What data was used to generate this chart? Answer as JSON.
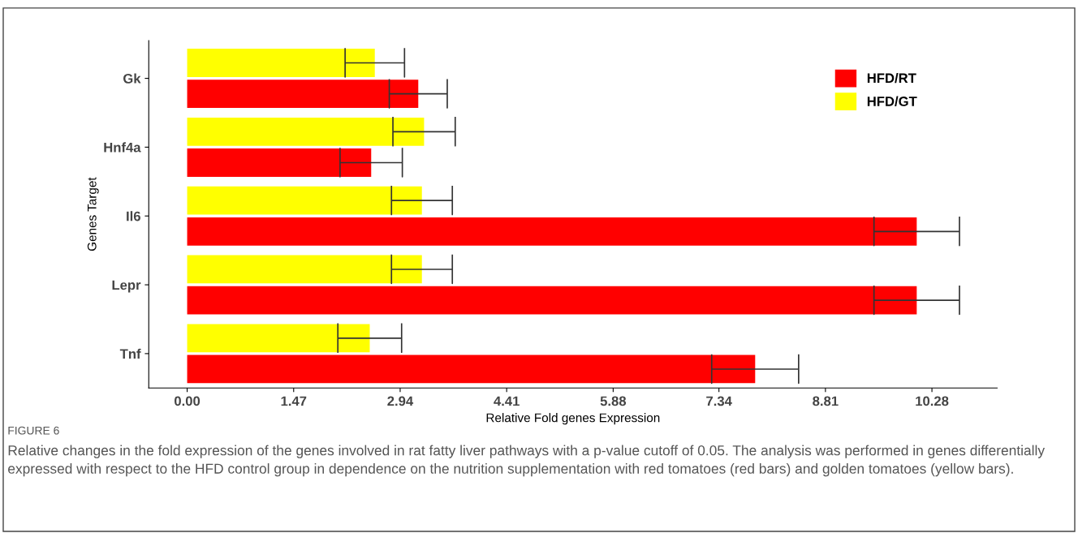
{
  "chart_data": {
    "type": "bar",
    "orientation": "horizontal",
    "xlabel": "Relative Fold genes Expression",
    "ylabel": "Genes Target",
    "categories": [
      "Gk",
      "Hnf4a",
      "Il6",
      "Lepr",
      "Tnf"
    ],
    "series": [
      {
        "name": "HFD/RT",
        "color": "#ff0000",
        "values": [
          3.19,
          2.54,
          10.07,
          10.07,
          7.84
        ],
        "errors": [
          0.4,
          0.43,
          0.59,
          0.59,
          0.6
        ]
      },
      {
        "name": "HFD/GT",
        "color": "#ffff00",
        "values": [
          2.59,
          3.27,
          3.24,
          3.24,
          2.52
        ],
        "errors": [
          0.41,
          0.43,
          0.42,
          0.42,
          0.44
        ]
      }
    ],
    "xlim": [
      -0.53,
      11.18
    ],
    "xticks": [
      {
        "value": 0,
        "label": "0.00"
      },
      1.47,
      2.94,
      4.41,
      5.88,
      7.34,
      8.81,
      10.28
    ],
    "legend": "top right",
    "grid": false,
    "annotations": [
      "FIGURE 6",
      "Relative changes in the fold expression of the genes involved in rat fatty liver pathways with a p-value cutoff of 0.05. The analysis was performed in genes differentially expressed with respect to the HFD control group in dependence on the nutrition supplementation with red tomatoes (red bars) and golden tomatoes (yellow bars)."
    ]
  }
}
